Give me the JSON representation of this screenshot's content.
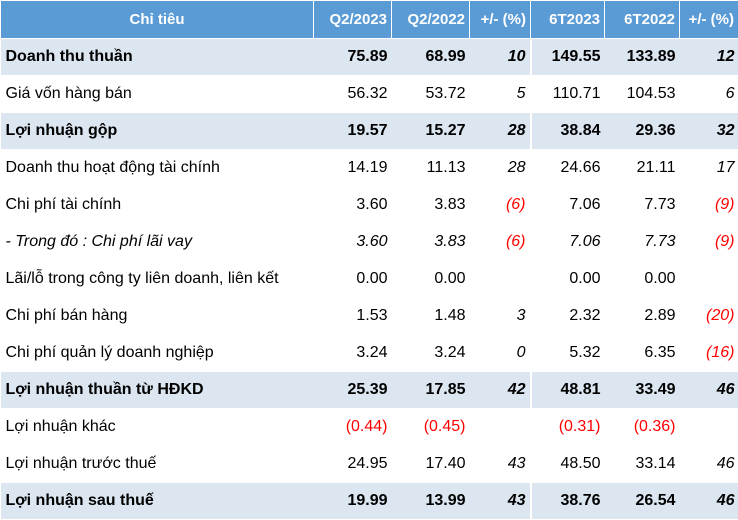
{
  "table": {
    "headers": [
      "Chỉ tiêu",
      "Q2/2023",
      "Q2/2022",
      "+/- (%)",
      "6T2023",
      "6T2022",
      "+/- (%)"
    ],
    "rows": [
      {
        "label": "Doanh thu thuần",
        "bold": true,
        "italic": false,
        "values": [
          "75.89",
          "68.99",
          "10",
          "149.55",
          "133.89",
          "12"
        ]
      },
      {
        "label": "Giá vốn hàng bán",
        "bold": false,
        "italic": false,
        "values": [
          "56.32",
          "53.72",
          "5",
          "110.71",
          "104.53",
          "6"
        ]
      },
      {
        "label": "Lợi nhuận gộp",
        "bold": true,
        "italic": false,
        "values": [
          "19.57",
          "15.27",
          "28",
          "38.84",
          "29.36",
          "32"
        ]
      },
      {
        "label": "Doanh thu hoạt động tài chính",
        "bold": false,
        "italic": false,
        "values": [
          "14.19",
          "11.13",
          "28",
          "24.66",
          "21.11",
          "17"
        ]
      },
      {
        "label": "Chi phí tài chính",
        "bold": false,
        "italic": false,
        "values": [
          "3.60",
          "3.83",
          "(6)",
          "7.06",
          "7.73",
          "(9)"
        ]
      },
      {
        "label": "- Trong đó : Chi phí lãi vay",
        "bold": false,
        "italic": true,
        "values": [
          "3.60",
          "3.83",
          "(6)",
          "7.06",
          "7.73",
          "(9)"
        ]
      },
      {
        "label": "Lãi/lỗ trong công ty liên doanh, liên kết",
        "bold": false,
        "italic": false,
        "values": [
          "0.00",
          "0.00",
          "",
          "0.00",
          "0.00",
          ""
        ]
      },
      {
        "label": "Chi phí bán hàng",
        "bold": false,
        "italic": false,
        "values": [
          "1.53",
          "1.48",
          "3",
          "2.32",
          "2.89",
          "(20)"
        ]
      },
      {
        "label": "Chi phí quản lý doanh nghiệp",
        "bold": false,
        "italic": false,
        "values": [
          "3.24",
          "3.24",
          "0",
          "5.32",
          "6.35",
          "(16)"
        ]
      },
      {
        "label": "Lợi nhuận thuần từ HĐKD",
        "bold": true,
        "italic": false,
        "values": [
          "25.39",
          "17.85",
          "42",
          "48.81",
          "33.49",
          "46"
        ]
      },
      {
        "label": "Lợi nhuận khác",
        "bold": false,
        "italic": false,
        "values": [
          "(0.44)",
          "(0.45)",
          "",
          "(0.31)",
          "(0.36)",
          ""
        ]
      },
      {
        "label": "Lợi nhuận trước thuế",
        "bold": false,
        "italic": false,
        "values": [
          "24.95",
          "17.40",
          "43",
          "48.50",
          "33.14",
          "46"
        ]
      },
      {
        "label": "Lợi nhuận sau thuế",
        "bold": true,
        "italic": false,
        "values": [
          "19.99",
          "13.99",
          "43",
          "38.76",
          "26.54",
          "46"
        ]
      }
    ]
  },
  "colors": {
    "header_bg": "#5b9bd5",
    "header_text": "#ffffff",
    "bold_row_bg": "#dce6f1",
    "negative_text": "#ff0000"
  }
}
